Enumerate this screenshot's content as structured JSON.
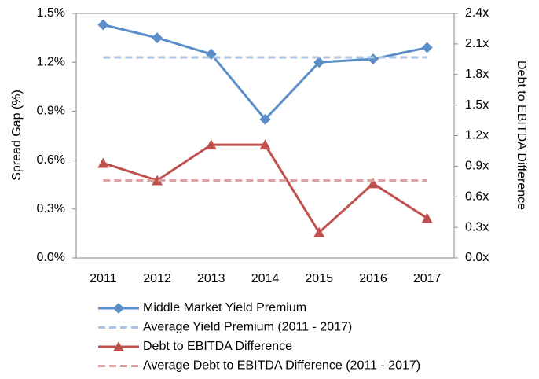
{
  "chart_data": {
    "type": "line",
    "y_label": "Spread Gap (%)",
    "y2_label": "Debt to EBITDA Difference",
    "categories": [
      "2011",
      "2012",
      "2013",
      "2014",
      "2015",
      "2016",
      "2017"
    ],
    "series": [
      {
        "name": "Middle Market Yield Premium",
        "color": "#5b8ec8",
        "marker": "diamond",
        "dash": false,
        "axis": "y",
        "values": [
          1.43,
          1.35,
          1.25,
          0.85,
          1.2,
          1.22,
          1.29
        ]
      },
      {
        "name": "Average Yield Premium (2011 - 2017)",
        "color": "#a9c4e4",
        "marker": "none",
        "dash": true,
        "axis": "y",
        "values": [
          1.23,
          1.23,
          1.23,
          1.23,
          1.23,
          1.23,
          1.23
        ]
      },
      {
        "name": "Debt to EBITDA Difference",
        "color": "#c0504d",
        "marker": "triangle",
        "dash": false,
        "axis": "y2",
        "values": [
          0.93,
          0.76,
          1.11,
          1.11,
          0.25,
          0.73,
          0.39
        ]
      },
      {
        "name": "Average Debt to EBITDA Difference (2011 - 2017)",
        "color": "#e0a09e",
        "marker": "none",
        "dash": true,
        "axis": "y2",
        "values": [
          0.76,
          0.76,
          0.76,
          0.76,
          0.76,
          0.76,
          0.76
        ]
      }
    ],
    "ylim": [
      0,
      1.5
    ],
    "yticks": [
      {
        "value": 0,
        "label": "0.0%"
      },
      {
        "value": 0.3,
        "label": "0.3%"
      },
      {
        "value": 0.6,
        "label": "0.6%"
      },
      {
        "value": 0.9,
        "label": "0.9%"
      },
      {
        "value": 1.2,
        "label": "1.2%"
      },
      {
        "value": 1.5,
        "label": "1.5%"
      }
    ],
    "y2lim": [
      0,
      2.4
    ],
    "y2ticks": [
      {
        "value": 0,
        "label": "0.0x"
      },
      {
        "value": 0.3,
        "label": "0.3x"
      },
      {
        "value": 0.6,
        "label": "0.6x"
      },
      {
        "value": 0.9,
        "label": "0.9x"
      },
      {
        "value": 1.2,
        "label": "1.2x"
      },
      {
        "value": 1.5,
        "label": "1.5x"
      },
      {
        "value": 1.8,
        "label": "1.8x"
      },
      {
        "value": 2.1,
        "label": "2.1x"
      },
      {
        "value": 2.4,
        "label": "2.4x"
      }
    ],
    "grid": false,
    "legend": "bottom"
  }
}
